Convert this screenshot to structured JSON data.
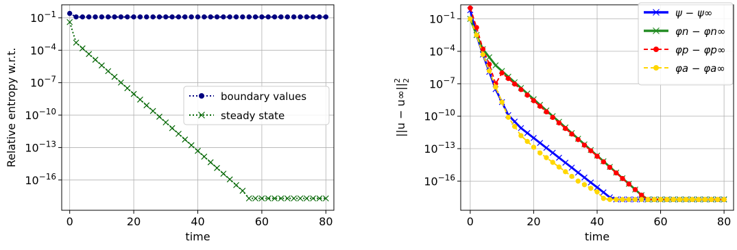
{
  "chart_data": [
    {
      "type": "line",
      "title": "",
      "xlabel": "time",
      "ylabel": "Relative entropy w.r.t.",
      "yscale": "log",
      "xlim": [
        -2.5,
        82.5
      ],
      "ylim_exp": [
        -18.8,
        0.2
      ],
      "xticks": [
        0,
        20,
        40,
        60,
        80
      ],
      "yticks": [
        {
          "exp": -1,
          "label": "10",
          "sup": "−1"
        },
        {
          "exp": -4,
          "label": "10",
          "sup": "−4"
        },
        {
          "exp": -7,
          "label": "10",
          "sup": "−7"
        },
        {
          "exp": -10,
          "label": "10",
          "sup": "−10"
        },
        {
          "exp": -13,
          "label": "10",
          "sup": "−13"
        },
        {
          "exp": -16,
          "label": "10",
          "sup": "−16"
        }
      ],
      "grid": true,
      "legend": "center-right",
      "series": [
        {
          "name": "boundary values",
          "color": "#000080",
          "line": "dotted",
          "marker": "circle",
          "x": [
            0,
            2,
            80
          ],
          "log10_y": [
            -0.6,
            -0.92,
            -0.92
          ]
        },
        {
          "name": "steady state",
          "color": "#006400",
          "line": "dotted",
          "marker": "x",
          "x": [
            0,
            2,
            54,
            56,
            80
          ],
          "log10_y": [
            -1.4,
            -3.3,
            -17.0,
            -17.7,
            -17.7
          ]
        }
      ]
    },
    {
      "type": "line",
      "title": "",
      "xlabel": "time",
      "ylabel": "||u − u∞||",
      "ylabel_sub": "2",
      "ylabel_sup": "2",
      "yscale": "log",
      "xlim": [
        -3,
        83
      ],
      "ylim_exp": [
        -18.7,
        0.3
      ],
      "xticks": [
        0,
        20,
        40,
        60,
        80
      ],
      "yticks": [
        {
          "exp": -1,
          "label": "10",
          "sup": "−1"
        },
        {
          "exp": -4,
          "label": "10",
          "sup": "−4"
        },
        {
          "exp": -7,
          "label": "10",
          "sup": "−7"
        },
        {
          "exp": -10,
          "label": "10",
          "sup": "−10"
        },
        {
          "exp": -13,
          "label": "10",
          "sup": "−13"
        },
        {
          "exp": -16,
          "label": "10",
          "sup": "−16"
        }
      ],
      "grid": true,
      "legend": "top-right",
      "series": [
        {
          "name": "ψ − ψ∞",
          "color": "#0000ff",
          "line": "solid",
          "marker": "x",
          "x": [
            0,
            2,
            4,
            8,
            12,
            16,
            44,
            46,
            80
          ],
          "log10_y": [
            -0.2,
            -2.5,
            -4.3,
            -7.5,
            -9.9,
            -11.1,
            -17.5,
            -17.7,
            -17.7
          ]
        },
        {
          "name": "φn − φn∞",
          "color": "#228b22",
          "line": "solid",
          "marker": "x",
          "x": [
            0,
            2,
            4,
            8,
            54,
            56,
            80
          ],
          "log10_y": [
            -1.0,
            -2.5,
            -3.8,
            -5.3,
            -17.3,
            -17.7,
            -17.7
          ]
        },
        {
          "name": "φp − φp∞",
          "color": "#ff0000",
          "line": "dashed",
          "marker": "circle",
          "x": [
            0,
            2,
            4,
            6,
            8,
            10,
            54,
            56,
            80
          ],
          "log10_y": [
            0.0,
            -1.8,
            -3.8,
            -5.2,
            -7.0,
            -6.0,
            -17.3,
            -17.7,
            -17.7
          ]
        },
        {
          "name": "φa − φa∞",
          "color": "#ffd700",
          "line": "dashed",
          "marker": "circle",
          "x": [
            0,
            2,
            4,
            8,
            12,
            16,
            22,
            28,
            34,
            40,
            42,
            44,
            80
          ],
          "log10_y": [
            -1.0,
            -2.5,
            -4.3,
            -7.3,
            -10.1,
            -11.8,
            -13.4,
            -14.7,
            -16.0,
            -17.0,
            -17.6,
            -17.7,
            -17.7
          ]
        }
      ]
    }
  ]
}
